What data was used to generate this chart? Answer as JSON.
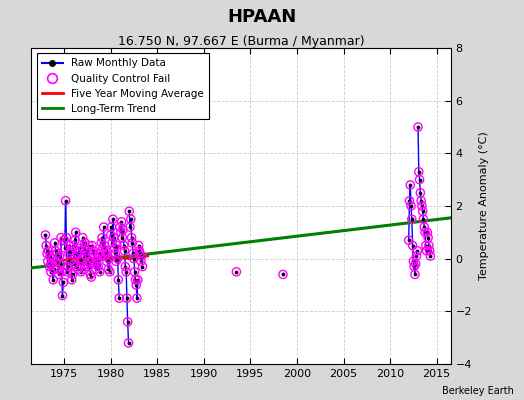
{
  "title": "HPAAN",
  "subtitle": "16.750 N, 97.667 E (Burma / Myanmar)",
  "ylabel": "Temperature Anomaly (°C)",
  "credit": "Berkeley Earth",
  "xlim": [
    1971.5,
    2016.5
  ],
  "ylim": [
    -4,
    8
  ],
  "yticks": [
    -4,
    -2,
    0,
    2,
    4,
    6,
    8
  ],
  "xticks": [
    1975,
    1980,
    1985,
    1990,
    1995,
    2000,
    2005,
    2010,
    2015
  ],
  "bg_color": "#d8d8d8",
  "plot_bg_color": "#ffffff",
  "trend_x": [
    1971.5,
    2016.5
  ],
  "trend_y": [
    -0.35,
    1.55
  ],
  "moving_avg_x": [
    1974,
    1976,
    1978,
    1980,
    1982,
    1984
  ],
  "moving_avg_y": [
    -0.1,
    0.0,
    0.0,
    0.05,
    0.0,
    0.1
  ],
  "yearly_groups": [
    {
      "year_start": 1973.0,
      "points": [
        [
          1973.0,
          0.9
        ],
        [
          1973.083,
          0.5
        ],
        [
          1973.167,
          0.2
        ],
        [
          1973.25,
          -0.1
        ],
        [
          1973.33,
          0.3
        ],
        [
          1973.42,
          -0.3
        ],
        [
          1973.5,
          0.1
        ],
        [
          1973.58,
          -0.5
        ],
        [
          1973.67,
          -0.2
        ],
        [
          1973.75,
          0.0
        ],
        [
          1973.83,
          -0.8
        ],
        [
          1973.92,
          -0.4
        ]
      ]
    },
    {
      "year_start": 1974.0,
      "points": [
        [
          1974.0,
          0.6
        ],
        [
          1974.083,
          0.3
        ],
        [
          1974.167,
          -0.1
        ],
        [
          1974.25,
          0.2
        ],
        [
          1974.33,
          -0.4
        ],
        [
          1974.42,
          -0.6
        ],
        [
          1974.5,
          0.1
        ],
        [
          1974.58,
          -0.2
        ],
        [
          1974.67,
          0.8
        ],
        [
          1974.75,
          -0.5
        ],
        [
          1974.83,
          -1.4
        ],
        [
          1974.92,
          -0.9
        ]
      ]
    },
    {
      "year_start": 1975.0,
      "points": [
        [
          1975.0,
          0.7
        ],
        [
          1975.083,
          0.4
        ],
        [
          1975.167,
          2.2
        ],
        [
          1975.25,
          0.8
        ],
        [
          1975.33,
          -0.5
        ],
        [
          1975.42,
          -0.3
        ],
        [
          1975.5,
          0.2
        ],
        [
          1975.58,
          0.5
        ],
        [
          1975.67,
          -0.1
        ],
        [
          1975.75,
          0.3
        ],
        [
          1975.83,
          -0.8
        ],
        [
          1975.92,
          -0.6
        ]
      ]
    },
    {
      "year_start": 1976.0,
      "points": [
        [
          1976.0,
          0.5
        ],
        [
          1976.083,
          -0.2
        ],
        [
          1976.167,
          0.7
        ],
        [
          1976.25,
          1.0
        ],
        [
          1976.33,
          -0.3
        ],
        [
          1976.42,
          0.2
        ],
        [
          1976.5,
          -0.4
        ],
        [
          1976.58,
          0.4
        ],
        [
          1976.67,
          0.3
        ],
        [
          1976.75,
          -0.1
        ],
        [
          1976.83,
          -0.5
        ],
        [
          1976.92,
          0.0
        ]
      ]
    },
    {
      "year_start": 1977.0,
      "points": [
        [
          1977.0,
          0.8
        ],
        [
          1977.083,
          0.4
        ],
        [
          1977.167,
          -0.4
        ],
        [
          1977.25,
          0.6
        ],
        [
          1977.33,
          0.1
        ],
        [
          1977.42,
          -0.2
        ],
        [
          1977.5,
          0.3
        ],
        [
          1977.58,
          -0.3
        ],
        [
          1977.67,
          0.5
        ],
        [
          1977.75,
          -0.1
        ],
        [
          1977.83,
          -0.6
        ],
        [
          1977.92,
          -0.7
        ]
      ]
    },
    {
      "year_start": 1978.0,
      "points": [
        [
          1978.0,
          0.5
        ],
        [
          1978.083,
          0.2
        ],
        [
          1978.167,
          0.3
        ],
        [
          1978.25,
          -0.2
        ],
        [
          1978.33,
          0.1
        ],
        [
          1978.42,
          -0.4
        ],
        [
          1978.5,
          -0.1
        ],
        [
          1978.58,
          0.0
        ],
        [
          1978.67,
          -0.3
        ],
        [
          1978.75,
          0.2
        ],
        [
          1978.83,
          -0.5
        ],
        [
          1978.92,
          0.1
        ]
      ]
    },
    {
      "year_start": 1979.0,
      "points": [
        [
          1979.0,
          0.6
        ],
        [
          1979.083,
          0.8
        ],
        [
          1979.167,
          0.4
        ],
        [
          1979.25,
          1.2
        ],
        [
          1979.33,
          0.5
        ],
        [
          1979.42,
          0.1
        ],
        [
          1979.5,
          0.3
        ],
        [
          1979.58,
          -0.1
        ],
        [
          1979.67,
          0.2
        ],
        [
          1979.75,
          -0.4
        ],
        [
          1979.83,
          0.0
        ],
        [
          1979.92,
          -0.5
        ]
      ]
    },
    {
      "year_start": 1980.0,
      "points": [
        [
          1980.0,
          0.9
        ],
        [
          1980.083,
          1.2
        ],
        [
          1980.167,
          0.6
        ],
        [
          1980.25,
          1.5
        ],
        [
          1980.33,
          0.8
        ],
        [
          1980.42,
          0.4
        ],
        [
          1980.5,
          0.2
        ],
        [
          1980.58,
          -0.1
        ],
        [
          1980.67,
          0.5
        ],
        [
          1980.75,
          0.0
        ],
        [
          1980.83,
          -0.8
        ],
        [
          1980.92,
          -1.5
        ]
      ]
    },
    {
      "year_start": 1981.0,
      "points": [
        [
          1981.0,
          1.2
        ],
        [
          1981.083,
          1.0
        ],
        [
          1981.167,
          1.4
        ],
        [
          1981.25,
          0.8
        ],
        [
          1981.33,
          1.1
        ],
        [
          1981.42,
          0.5
        ],
        [
          1981.5,
          0.3
        ],
        [
          1981.58,
          -0.3
        ],
        [
          1981.67,
          -0.5
        ],
        [
          1981.75,
          -1.5
        ],
        [
          1981.83,
          -2.4
        ],
        [
          1981.92,
          -3.2
        ]
      ]
    },
    {
      "year_start": 1982.0,
      "points": [
        [
          1982.0,
          1.8
        ],
        [
          1982.083,
          1.2
        ],
        [
          1982.167,
          1.5
        ],
        [
          1982.25,
          0.8
        ],
        [
          1982.33,
          0.6
        ],
        [
          1982.42,
          0.2
        ],
        [
          1982.5,
          0.0
        ],
        [
          1982.58,
          -0.5
        ],
        [
          1982.67,
          -0.8
        ],
        [
          1982.75,
          -1.0
        ],
        [
          1982.83,
          -1.5
        ],
        [
          1982.92,
          -0.8
        ]
      ]
    },
    {
      "year_start": 1983.0,
      "points": [
        [
          1983.0,
          0.5
        ],
        [
          1983.083,
          0.3
        ],
        [
          1983.167,
          0.2
        ],
        [
          1983.25,
          -0.1
        ],
        [
          1983.33,
          0.1
        ],
        [
          1983.42,
          -0.3
        ]
      ]
    },
    {
      "year_start": 1993.0,
      "points": [
        [
          1993.5,
          -0.5
        ]
      ]
    },
    {
      "year_start": 1998.0,
      "points": [
        [
          1998.5,
          -0.6
        ]
      ]
    },
    {
      "year_start": 2012.0,
      "points": [
        [
          2012.0,
          0.7
        ],
        [
          2012.083,
          2.2
        ],
        [
          2012.167,
          2.8
        ],
        [
          2012.25,
          2.0
        ],
        [
          2012.33,
          1.5
        ],
        [
          2012.42,
          0.5
        ],
        [
          2012.5,
          -0.1
        ],
        [
          2012.58,
          -0.3
        ],
        [
          2012.67,
          -0.6
        ],
        [
          2012.75,
          -0.2
        ],
        [
          2012.83,
          0.1
        ],
        [
          2012.92,
          0.3
        ]
      ]
    },
    {
      "year_start": 2013.0,
      "points": [
        [
          2013.0,
          5.0
        ],
        [
          2013.083,
          3.3
        ],
        [
          2013.167,
          3.0
        ],
        [
          2013.25,
          2.5
        ],
        [
          2013.33,
          2.2
        ],
        [
          2013.42,
          2.0
        ],
        [
          2013.5,
          1.8
        ],
        [
          2013.58,
          1.5
        ],
        [
          2013.67,
          1.2
        ],
        [
          2013.75,
          1.0
        ],
        [
          2013.83,
          0.5
        ],
        [
          2013.92,
          0.3
        ]
      ]
    },
    {
      "year_start": 2014.0,
      "points": [
        [
          2014.0,
          1.0
        ],
        [
          2014.083,
          0.8
        ],
        [
          2014.167,
          0.5
        ],
        [
          2014.25,
          0.3
        ],
        [
          2014.33,
          0.1
        ]
      ]
    }
  ],
  "qc_fail_points": [
    [
      1973.0,
      0.9
    ],
    [
      1973.083,
      0.5
    ],
    [
      1973.167,
      0.2
    ],
    [
      1973.25,
      -0.1
    ],
    [
      1973.33,
      0.3
    ],
    [
      1973.42,
      -0.3
    ],
    [
      1973.5,
      0.1
    ],
    [
      1973.58,
      -0.5
    ],
    [
      1973.67,
      -0.2
    ],
    [
      1973.75,
      0.0
    ],
    [
      1973.83,
      -0.8
    ],
    [
      1973.92,
      -0.4
    ],
    [
      1974.0,
      0.6
    ],
    [
      1974.083,
      0.3
    ],
    [
      1974.167,
      -0.1
    ],
    [
      1974.25,
      0.2
    ],
    [
      1974.33,
      -0.4
    ],
    [
      1974.42,
      -0.6
    ],
    [
      1974.5,
      0.1
    ],
    [
      1974.58,
      -0.2
    ],
    [
      1974.67,
      0.8
    ],
    [
      1974.75,
      -0.5
    ],
    [
      1974.83,
      -1.4
    ],
    [
      1974.92,
      -0.9
    ],
    [
      1975.0,
      0.7
    ],
    [
      1975.083,
      0.4
    ],
    [
      1975.167,
      2.2
    ],
    [
      1975.25,
      0.8
    ],
    [
      1975.33,
      -0.5
    ],
    [
      1975.42,
      -0.3
    ],
    [
      1975.5,
      0.2
    ],
    [
      1975.58,
      0.5
    ],
    [
      1975.67,
      -0.1
    ],
    [
      1975.75,
      0.3
    ],
    [
      1975.83,
      -0.8
    ],
    [
      1975.92,
      -0.6
    ],
    [
      1976.0,
      0.5
    ],
    [
      1976.083,
      -0.2
    ],
    [
      1976.167,
      0.7
    ],
    [
      1976.25,
      1.0
    ],
    [
      1976.33,
      -0.3
    ],
    [
      1976.42,
      0.2
    ],
    [
      1976.5,
      -0.4
    ],
    [
      1976.58,
      0.4
    ],
    [
      1976.67,
      0.3
    ],
    [
      1976.75,
      -0.1
    ],
    [
      1976.83,
      -0.5
    ],
    [
      1976.92,
      0.0
    ],
    [
      1977.0,
      0.8
    ],
    [
      1977.083,
      0.4
    ],
    [
      1977.167,
      -0.4
    ],
    [
      1977.25,
      0.6
    ],
    [
      1977.33,
      0.1
    ],
    [
      1977.42,
      -0.2
    ],
    [
      1977.5,
      0.3
    ],
    [
      1977.58,
      -0.3
    ],
    [
      1977.67,
      0.5
    ],
    [
      1977.75,
      -0.1
    ],
    [
      1977.83,
      -0.6
    ],
    [
      1977.92,
      -0.7
    ],
    [
      1978.0,
      0.5
    ],
    [
      1978.083,
      0.2
    ],
    [
      1978.167,
      0.3
    ],
    [
      1978.25,
      -0.2
    ],
    [
      1978.33,
      0.1
    ],
    [
      1978.42,
      -0.4
    ],
    [
      1978.5,
      -0.1
    ],
    [
      1978.58,
      0.0
    ],
    [
      1978.67,
      -0.3
    ],
    [
      1978.75,
      0.2
    ],
    [
      1978.83,
      -0.5
    ],
    [
      1978.92,
      0.1
    ],
    [
      1979.0,
      0.6
    ],
    [
      1979.083,
      0.8
    ],
    [
      1979.167,
      0.4
    ],
    [
      1979.25,
      1.2
    ],
    [
      1979.33,
      0.5
    ],
    [
      1979.42,
      0.1
    ],
    [
      1979.5,
      0.3
    ],
    [
      1979.58,
      -0.1
    ],
    [
      1979.67,
      0.2
    ],
    [
      1979.75,
      -0.4
    ],
    [
      1979.83,
      0.0
    ],
    [
      1979.92,
      -0.5
    ],
    [
      1980.0,
      0.9
    ],
    [
      1980.083,
      1.2
    ],
    [
      1980.167,
      0.6
    ],
    [
      1980.25,
      1.5
    ],
    [
      1980.33,
      0.8
    ],
    [
      1980.42,
      0.4
    ],
    [
      1980.5,
      0.2
    ],
    [
      1980.58,
      -0.1
    ],
    [
      1980.67,
      0.5
    ],
    [
      1980.75,
      0.0
    ],
    [
      1980.83,
      -0.8
    ],
    [
      1980.92,
      -1.5
    ],
    [
      1981.0,
      1.2
    ],
    [
      1981.083,
      1.0
    ],
    [
      1981.167,
      1.4
    ],
    [
      1981.25,
      0.8
    ],
    [
      1981.33,
      1.1
    ],
    [
      1981.42,
      0.5
    ],
    [
      1981.5,
      0.3
    ],
    [
      1981.58,
      -0.3
    ],
    [
      1981.67,
      -0.5
    ],
    [
      1981.75,
      -1.5
    ],
    [
      1981.83,
      -2.4
    ],
    [
      1981.92,
      -3.2
    ],
    [
      1982.0,
      1.8
    ],
    [
      1982.083,
      1.2
    ],
    [
      1982.167,
      1.5
    ],
    [
      1982.25,
      0.8
    ],
    [
      1982.33,
      0.6
    ],
    [
      1982.42,
      0.2
    ],
    [
      1982.5,
      0.0
    ],
    [
      1982.58,
      -0.5
    ],
    [
      1982.67,
      -0.8
    ],
    [
      1982.75,
      -1.0
    ],
    [
      1982.83,
      -1.5
    ],
    [
      1982.92,
      -0.8
    ],
    [
      1983.0,
      0.5
    ],
    [
      1983.083,
      0.3
    ],
    [
      1983.167,
      0.2
    ],
    [
      1983.25,
      -0.1
    ],
    [
      1983.33,
      0.1
    ],
    [
      1983.42,
      -0.3
    ],
    [
      1993.5,
      -0.5
    ],
    [
      1998.5,
      -0.6
    ],
    [
      2012.0,
      0.7
    ],
    [
      2012.083,
      2.2
    ],
    [
      2012.167,
      2.8
    ],
    [
      2012.25,
      2.0
    ],
    [
      2012.33,
      1.5
    ],
    [
      2012.42,
      0.5
    ],
    [
      2012.5,
      -0.1
    ],
    [
      2012.58,
      -0.3
    ],
    [
      2012.67,
      -0.6
    ],
    [
      2012.75,
      -0.2
    ],
    [
      2012.83,
      0.1
    ],
    [
      2012.92,
      0.3
    ],
    [
      2013.0,
      5.0
    ],
    [
      2013.083,
      3.3
    ],
    [
      2013.167,
      3.0
    ],
    [
      2013.25,
      2.5
    ],
    [
      2013.33,
      2.2
    ],
    [
      2013.42,
      2.0
    ],
    [
      2013.5,
      1.8
    ],
    [
      2013.58,
      1.5
    ],
    [
      2013.67,
      1.2
    ],
    [
      2013.75,
      1.0
    ],
    [
      2013.83,
      0.5
    ],
    [
      2013.92,
      0.3
    ],
    [
      2014.0,
      1.0
    ],
    [
      2014.083,
      0.8
    ],
    [
      2014.167,
      0.5
    ],
    [
      2014.25,
      0.3
    ],
    [
      2014.33,
      0.1
    ]
  ]
}
